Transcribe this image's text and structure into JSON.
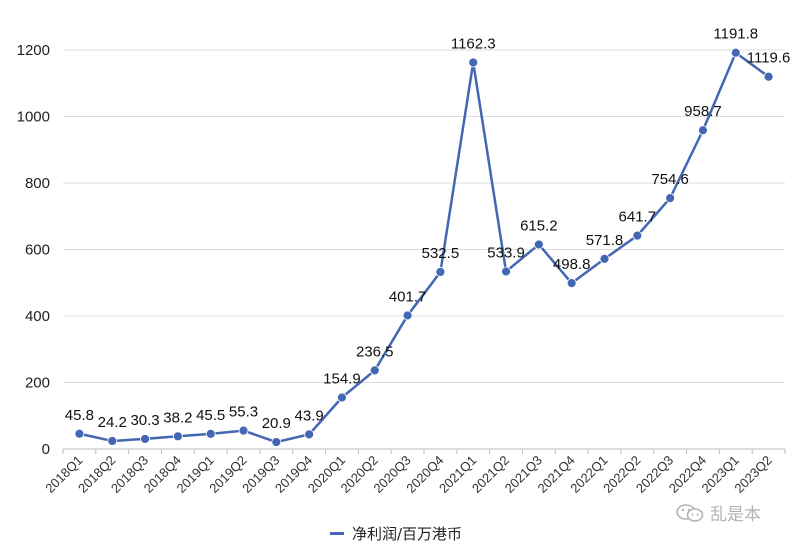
{
  "chart_data": {
    "type": "line",
    "categories": [
      "2018Q1",
      "2018Q2",
      "2018Q3",
      "2018Q4",
      "2019Q1",
      "2019Q2",
      "2019Q3",
      "2019Q4",
      "2020Q1",
      "2020Q2",
      "2020Q3",
      "2020Q4",
      "2021Q1",
      "2021Q2",
      "2021Q3",
      "2021Q4",
      "2022Q1",
      "2022Q2",
      "2022Q3",
      "2022Q4",
      "2023Q1",
      "2023Q2"
    ],
    "series": [
      {
        "name": "净利润/百万港币",
        "values": [
          45.8,
          24.2,
          30.3,
          38.2,
          45.5,
          55.3,
          20.9,
          43.9,
          154.9,
          236.5,
          401.7,
          532.5,
          1162.3,
          533.9,
          615.2,
          498.8,
          571.8,
          641.7,
          754.6,
          958.7,
          1191.8,
          1119.6
        ],
        "data_labels": [
          "45.8",
          "24.2",
          "30.3",
          "38.2",
          "45.5",
          "55.3",
          "20.9",
          "43.9",
          "154.9",
          "236.5",
          "401.7",
          "532.5",
          "1162.3",
          "533.9",
          "615.2",
          "498.8",
          "571.8",
          "641.7",
          "754.6",
          "958.7",
          "1191.8",
          "1119.6"
        ],
        "color": "#4467b3"
      }
    ],
    "ylim": [
      0,
      1200
    ],
    "yticks": [
      "0",
      "200",
      "400",
      "600",
      "800",
      "1000",
      "1200"
    ],
    "grid": true,
    "legend_position": "bottom"
  },
  "watermark": {
    "text": "乱是本",
    "icon": "wechat-icon"
  }
}
